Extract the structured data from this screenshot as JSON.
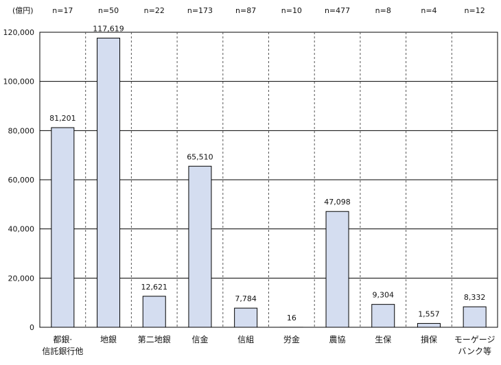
{
  "chart_data": {
    "type": "bar",
    "ylabel": "(億円)",
    "categories": [
      [
        "都銀·",
        "信託銀行他"
      ],
      [
        "地銀"
      ],
      [
        "第二地銀"
      ],
      [
        "信金"
      ],
      [
        "信組"
      ],
      [
        "労金"
      ],
      [
        "農協"
      ],
      [
        "生保"
      ],
      [
        "損保"
      ],
      [
        "モーゲージ",
        "バンク等"
      ]
    ],
    "counts": [
      "n=17",
      "n=50",
      "n=22",
      "n=173",
      "n=87",
      "n=10",
      "n=477",
      "n=8",
      "n=4",
      "n=12"
    ],
    "values": [
      81201,
      117619,
      12621,
      65510,
      7784,
      16,
      47098,
      9304,
      1557,
      8332
    ],
    "value_labels": [
      "81,201",
      "117,619",
      "12,621",
      "65,510",
      "7,784",
      "16",
      "47,098",
      "9,304",
      "1,557",
      "8,332"
    ],
    "ylim": [
      0,
      120000
    ],
    "yticks": [
      0,
      20000,
      40000,
      60000,
      80000,
      100000,
      120000
    ],
    "ytick_labels": [
      "0",
      "20,000",
      "40,000",
      "60,000",
      "80,000",
      "100,000",
      "120,000"
    ],
    "grid": true,
    "bar_color": "#d4ddf0",
    "bar_edge_color": "#000000",
    "grid_color": "#000000"
  }
}
